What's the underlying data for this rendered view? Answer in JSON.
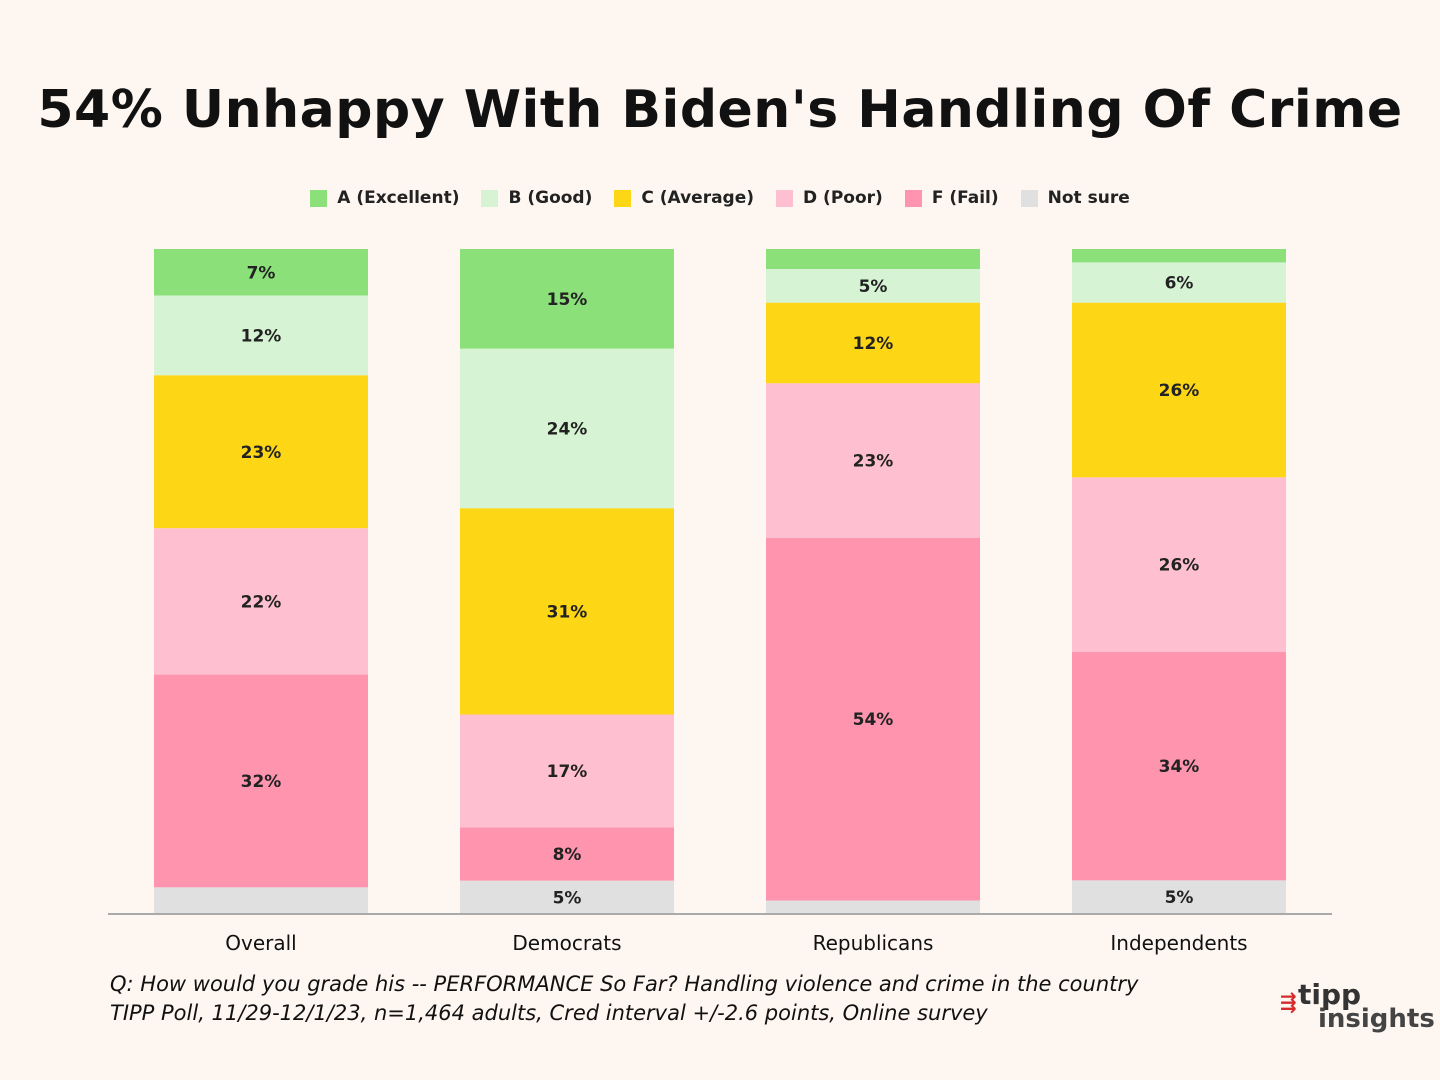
{
  "title": "54% Unhappy With Biden's Handling Of Crime",
  "legend": [
    {
      "label": "A (Excellent)",
      "color": "#8be07a"
    },
    {
      "label": "B (Good)",
      "color": "#d6f4d3"
    },
    {
      "label": "C (Average)",
      "color": "#fdd616"
    },
    {
      "label": "D (Poor)",
      "color": "#fec0d0"
    },
    {
      "label": "F (Fail)",
      "color": "#fe94ae"
    },
    {
      "label": "Not sure",
      "color": "#e0e0e0"
    }
  ],
  "chart_data": {
    "type": "bar",
    "stacked": true,
    "orientation": "vertical",
    "categories": [
      "Overall",
      "Democrats",
      "Republicans",
      "Independents"
    ],
    "series": [
      {
        "name": "A (Excellent)",
        "color": "#8be07a",
        "values": [
          7,
          15,
          3,
          2
        ],
        "labels": [
          "7%",
          "15%",
          "",
          ""
        ]
      },
      {
        "name": "B (Good)",
        "color": "#d6f4d3",
        "values": [
          12,
          24,
          5,
          6
        ],
        "labels": [
          "12%",
          "24%",
          "5%",
          "6%"
        ]
      },
      {
        "name": "C (Average)",
        "color": "#fdd616",
        "values": [
          23,
          31,
          12,
          26
        ],
        "labels": [
          "23%",
          "31%",
          "12%",
          "26%"
        ]
      },
      {
        "name": "D (Poor)",
        "color": "#fec0d0",
        "values": [
          22,
          17,
          23,
          26
        ],
        "labels": [
          "22%",
          "17%",
          "23%",
          "26%"
        ]
      },
      {
        "name": "F (Fail)",
        "color": "#fe94ae",
        "values": [
          32,
          8,
          54,
          34
        ],
        "labels": [
          "32%",
          "8%",
          "54%",
          "34%"
        ]
      },
      {
        "name": "Not sure",
        "color": "#e0e0e0",
        "values": [
          4,
          5,
          2,
          5
        ],
        "labels": [
          "",
          "5%",
          "",
          "5%"
        ]
      }
    ],
    "ylim": [
      0,
      100
    ]
  },
  "footnote": {
    "line1": "Q:  How would you grade his -- PERFORMANCE So Far? Handling violence and crime in the country",
    "line2": "TIPP Poll, 11/29-12/1/23, n=1,464 adults, Cred interval +/-2.6 points, Online survey"
  },
  "logo": {
    "mark": "⇶",
    "line1": "tipp",
    "line2": "insights",
    "color": "#d62b2b"
  }
}
